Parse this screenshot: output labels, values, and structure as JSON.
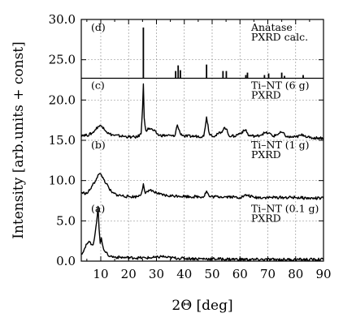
{
  "chart_data": {
    "type": "line",
    "xlabel": "2Θ [deg]",
    "ylabel": "Intensity [arb.units + const]",
    "xlim": [
      3,
      90
    ],
    "ylim": [
      0,
      30
    ],
    "x_ticks": [
      "10",
      "20",
      "30",
      "40",
      "50",
      "60",
      "70",
      "80",
      "90"
    ],
    "y_ticks": [
      "0.0",
      "5.0",
      "10.0",
      "15.0",
      "20.0",
      "25.0",
      "30.0"
    ],
    "grid": true,
    "panel_separators": [
      22.7
    ],
    "annotations": [
      {
        "label": "(d)",
        "x": 6.5,
        "y": 29.0
      },
      {
        "label": "Anatase",
        "x": 64,
        "y": 29.0
      },
      {
        "label": "PXRD calc.",
        "x": 64,
        "y": 27.8
      },
      {
        "label": "(c)",
        "x": 6.5,
        "y": 21.8
      },
      {
        "label": "Ti–NT (6 g)",
        "x": 64,
        "y": 21.8
      },
      {
        "label": "PXRD",
        "x": 64,
        "y": 20.6
      },
      {
        "label": "(b)",
        "x": 6.5,
        "y": 14.4
      },
      {
        "label": "Ti–NT (1 g)",
        "x": 64,
        "y": 14.4
      },
      {
        "label": "PXRD",
        "x": 64,
        "y": 13.2
      },
      {
        "label": "(a)",
        "x": 6.5,
        "y": 6.5
      },
      {
        "label": "Ti–NT (0.1 g)",
        "x": 64,
        "y": 6.5
      },
      {
        "label": "PXRD",
        "x": 64,
        "y": 5.3
      }
    ],
    "series": [
      {
        "kind": "sticks",
        "baseline": 22.7,
        "x": [
          25.3,
          36.9,
          37.8,
          38.6,
          48.0,
          53.9,
          55.1,
          62.1,
          62.7,
          68.8,
          70.3,
          75.0,
          76.0,
          82.7
        ],
        "values": [
          29.0,
          23.6,
          24.3,
          23.7,
          24.4,
          23.6,
          23.6,
          23.1,
          23.4,
          23.1,
          23.3,
          23.4,
          23.0,
          23.1
        ]
      },
      {
        "kind": "pattern",
        "x": [
          3,
          5,
          7,
          8,
          9,
          10,
          11,
          12,
          13,
          15,
          18,
          21,
          23,
          24.5,
          25.0,
          25.3,
          25.6,
          26.2,
          27.5,
          29,
          31,
          34,
          36.5,
          37.5,
          38.5,
          40,
          44,
          47,
          48.0,
          49,
          51,
          53.8,
          54.5,
          55.1,
          56,
          58,
          62.2,
          63,
          66,
          68.8,
          70.3,
          72,
          75.0,
          77,
          80,
          82.7,
          85,
          88,
          90
        ],
        "values": [
          15.7,
          15.6,
          15.9,
          16.3,
          16.7,
          16.8,
          16.6,
          16.1,
          15.8,
          15.6,
          15.5,
          15.4,
          15.4,
          15.8,
          19.0,
          22.0,
          17.8,
          16.2,
          16.5,
          16.2,
          15.6,
          15.6,
          15.5,
          16.9,
          15.9,
          15.5,
          15.5,
          15.5,
          17.9,
          15.8,
          15.5,
          16.2,
          16.6,
          16.4,
          15.6,
          15.5,
          16.3,
          15.6,
          15.5,
          15.9,
          15.9,
          15.5,
          16.0,
          15.4,
          15.4,
          15.7,
          15.3,
          15.3,
          15.3
        ]
      },
      {
        "kind": "pattern",
        "x": [
          3,
          5,
          6,
          7,
          8,
          9,
          10,
          11,
          12,
          13,
          14,
          16,
          20,
          23,
          24.5,
          25.3,
          26,
          27,
          28,
          29,
          31,
          34,
          38,
          42,
          47,
          48.0,
          49,
          53,
          56,
          60,
          62.5,
          65,
          70,
          75,
          80,
          85,
          90
        ],
        "values": [
          8.5,
          8.4,
          8.8,
          9.4,
          9.9,
          10.7,
          10.8,
          10.2,
          9.6,
          9.0,
          8.5,
          8.2,
          8.0,
          8.0,
          8.3,
          9.6,
          8.4,
          8.6,
          8.9,
          8.6,
          8.3,
          8.1,
          8.1,
          8.0,
          8.0,
          8.7,
          8.0,
          8.0,
          8.0,
          7.9,
          8.2,
          7.9,
          7.9,
          7.9,
          7.9,
          7.8,
          7.8
        ]
      },
      {
        "kind": "pattern",
        "x": [
          3,
          4,
          5,
          6,
          7,
          7.5,
          8,
          8.5,
          9.0,
          9.4,
          9.8,
          10.2,
          10.8,
          11.5,
          12.5,
          13.5,
          15,
          18,
          22,
          26,
          30,
          32,
          34,
          38,
          45,
          55,
          65,
          75,
          85,
          90
        ],
        "values": [
          0.9,
          1.4,
          2.1,
          2.4,
          2.0,
          2.4,
          3.5,
          4.8,
          6.8,
          4.0,
          2.2,
          2.9,
          1.8,
          1.2,
          0.8,
          0.6,
          0.5,
          0.45,
          0.4,
          0.4,
          0.45,
          0.6,
          0.45,
          0.35,
          0.3,
          0.25,
          0.2,
          0.2,
          0.2,
          0.2
        ]
      }
    ]
  }
}
